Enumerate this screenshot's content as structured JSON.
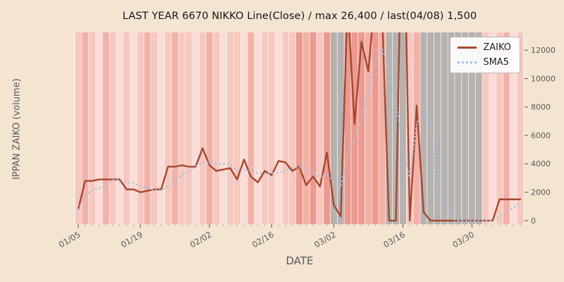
{
  "colors": {
    "figure_bg": "#f4e5d2",
    "plot_bg": "#fdf2ee",
    "title_text": "#15151f",
    "axis_text": "#595959",
    "tick_mark": "#555555",
    "legend_border": "#b7b7b7"
  },
  "chart_data": {
    "type": "line",
    "title": "LAST YEAR 6670 NIKKO Line(Close) / max 26,400 / last(04/08) 1,500",
    "xlabel": "DATE",
    "ylabel": "IPPAN ZAIKO (volume)",
    "ylim": [
      -250,
      13250
    ],
    "yticks": [
      0,
      2000,
      4000,
      6000,
      8000,
      10000,
      12000
    ],
    "legend_position": "upper right",
    "grid": false,
    "x": [
      "01/05",
      "01/06",
      "01/07",
      "01/08",
      "01/12",
      "01/13",
      "01/14",
      "01/15",
      "01/18",
      "01/19",
      "01/20",
      "01/21",
      "01/22",
      "01/25",
      "01/26",
      "01/27",
      "01/28",
      "01/29",
      "02/01",
      "02/02",
      "02/03",
      "02/04",
      "02/05",
      "02/08",
      "02/09",
      "02/10",
      "02/12",
      "02/15",
      "02/16",
      "02/17",
      "02/18",
      "02/19",
      "02/22",
      "02/24",
      "02/25",
      "02/26",
      "03/01",
      "03/02",
      "03/03",
      "03/04",
      "03/05",
      "03/08",
      "03/09",
      "03/10",
      "03/11",
      "03/12",
      "03/15",
      "03/16",
      "03/17",
      "03/18",
      "03/19",
      "03/22",
      "03/23",
      "03/24",
      "03/25",
      "03/26",
      "03/29",
      "03/30",
      "03/31",
      "04/01",
      "04/02",
      "04/05",
      "04/06",
      "04/07",
      "04/08"
    ],
    "xticks": [
      {
        "index": 0,
        "label": "01/05"
      },
      {
        "index": 9,
        "label": "01/19"
      },
      {
        "index": 19,
        "label": "02/02"
      },
      {
        "index": 28,
        "label": "02/16"
      },
      {
        "index": 37,
        "label": "03/02"
      },
      {
        "index": 47,
        "label": "03/16"
      },
      {
        "index": 57,
        "label": "03/30"
      }
    ],
    "series": [
      {
        "name": "ZAIKO",
        "style": "solid",
        "color": "#a8472c",
        "values": [
          800,
          2800,
          2800,
          2900,
          2900,
          2900,
          2900,
          2200,
          2200,
          2000,
          2100,
          2200,
          2200,
          3800,
          3800,
          3900,
          3800,
          3800,
          5100,
          3900,
          3500,
          3600,
          3700,
          2900,
          4300,
          3100,
          2700,
          3500,
          3200,
          4200,
          4100,
          3500,
          3800,
          2500,
          3100,
          2400,
          4800,
          1100,
          300,
          15500,
          6800,
          12600,
          10500,
          16000,
          14500,
          0,
          0,
          26400,
          0,
          8100,
          600,
          0,
          0,
          0,
          0,
          0,
          0,
          0,
          0,
          0,
          0,
          1500,
          1500,
          1500,
          1500
        ]
      },
      {
        "name": "SMA5",
        "style": "dotted",
        "color": "#9fc2e4",
        "values": [
          800,
          1800,
          2100,
          2300,
          2440,
          2860,
          2880,
          2760,
          2620,
          2440,
          2280,
          2140,
          2140,
          2460,
          2820,
          3180,
          3500,
          3820,
          4080,
          4100,
          4020,
          3980,
          3960,
          3520,
          3600,
          3520,
          3340,
          3300,
          3360,
          3340,
          3540,
          3700,
          3760,
          3620,
          3400,
          3060,
          3320,
          2780,
          2340,
          4800,
          5700,
          7260,
          9100,
          11400,
          12100,
          10700,
          8200,
          5300,
          3000,
          6900,
          7300,
          7000,
          1700,
          1700,
          120,
          0,
          0,
          0,
          0,
          0,
          0,
          300,
          600,
          900,
          1200
        ]
      }
    ],
    "background_bands": {
      "per_day_colors": [
        "#f7c8c0",
        "#f2b1a8",
        "#f7c8c0",
        "#fbdcd6",
        "#f2b1a8",
        "#f7c8c0",
        "#fbdcd6",
        "#f7c8c0",
        "#fbdcd6",
        "#f7c8c0",
        "#f2b1a8",
        "#f7c8c0",
        "#fbdcd6",
        "#f7c8c0",
        "#f2b1a8",
        "#f7c8c0",
        "#f7c8c0",
        "#fbdcd6",
        "#f7c8c0",
        "#f2b1a8",
        "#f7c8c0",
        "#fbdcd6",
        "#f7c8c0",
        "#f7c8c0",
        "#fbdcd6",
        "#f2b1a8",
        "#fbdcd6",
        "#f7c8c0",
        "#f7c8c0",
        "#fbdcd6",
        "#f7c8c0",
        "#f7c8c0",
        "#ec9a90",
        "#f2b1a8",
        "#ec9a90",
        "#f7c8c0",
        "#ec9a90",
        "#b5b2b0",
        "#b5b2b0",
        "#ec9a90",
        "#ec9a90",
        "#ec9a90",
        "#f2b1a8",
        "#ec9a90",
        "#f2b1a8",
        "#b5b2b0",
        "#b5b2b0",
        "#b5b2b0",
        "#f7c8c0",
        "#f2b1a8",
        "#b5b2b0",
        "#b5b2b0",
        "#b5b2b0",
        "#b5b2b0",
        "#b5b2b0",
        "#b5b2b0",
        "#b5b2b0",
        "#b5b2b0",
        "#b5b2b0",
        "#f7c8c0",
        "#fbdcd6",
        "#f7c8c0",
        "#f2b1a8",
        "#fbdcd6",
        "#f7c8c0"
      ]
    },
    "annotations": {
      "max_value_text": "26,400",
      "last_date_text": "04/08",
      "last_value_text": "1,500"
    }
  },
  "legend": {
    "items": [
      {
        "label": "ZAIKO"
      },
      {
        "label": "SMA5"
      }
    ]
  }
}
